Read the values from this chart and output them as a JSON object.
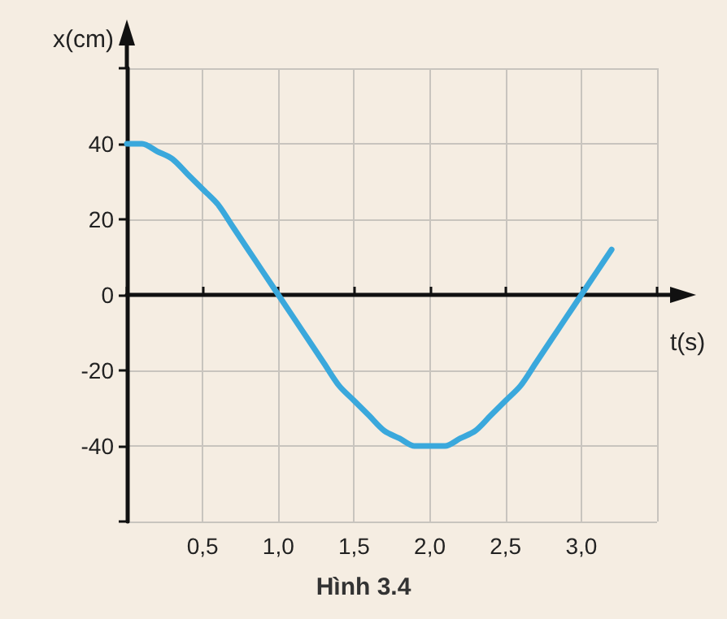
{
  "chart_data": {
    "type": "line",
    "xlabel": "t(s)",
    "ylabel": "x(cm)",
    "annotations": [
      "Hình 3.4"
    ],
    "x": [
      0,
      0.1,
      0.2,
      0.3,
      0.4,
      0.5,
      0.6,
      0.7,
      0.8,
      0.9,
      1.0,
      1.1,
      1.2,
      1.3,
      1.4,
      1.5,
      1.6,
      1.7,
      1.8,
      1.9,
      2.0,
      2.1,
      2.2,
      2.3,
      2.4,
      2.5,
      2.6,
      2.7,
      2.8,
      2.9,
      3.0,
      3.1,
      3.2
    ],
    "series": [
      {
        "color": "#3aa8dc",
        "values": [
          40,
          40,
          38,
          36,
          32,
          28,
          24,
          18,
          12,
          6,
          0,
          -6,
          -12,
          -18,
          -24,
          -28,
          -32,
          -36,
          -38,
          -40,
          -40,
          -40,
          -38,
          -36,
          -32,
          -28,
          -24,
          -18,
          -12,
          -6,
          0,
          6,
          12
        ]
      }
    ],
    "xlim": [
      0,
      3.5
    ],
    "ylim": [
      -60,
      60
    ],
    "xticks": [
      {
        "value": 0.5,
        "label": "0,5"
      },
      {
        "value": 1.0,
        "label": "1,0"
      },
      {
        "value": 1.5,
        "label": "1,5"
      },
      {
        "value": 2.0,
        "label": "2,0"
      },
      {
        "value": 2.5,
        "label": "2,5"
      },
      {
        "value": 3.0,
        "label": "3,0"
      },
      {
        "value": 3.5,
        "label": null
      }
    ],
    "yticks": [
      {
        "value": -60,
        "label": null
      },
      -40,
      -20,
      0,
      20,
      40,
      {
        "value": 60,
        "label": null
      }
    ],
    "grid": true,
    "marker": "none",
    "line_style": "solid"
  }
}
